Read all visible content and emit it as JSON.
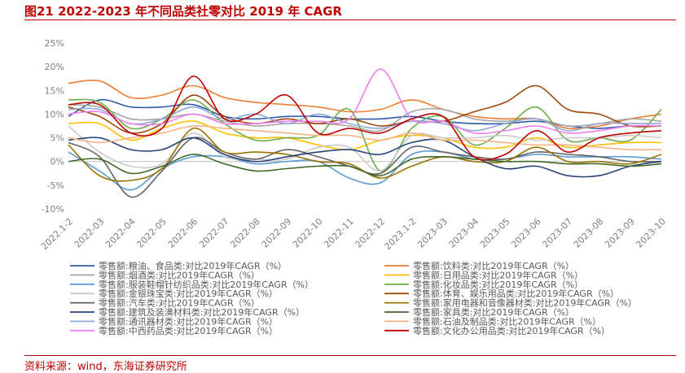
{
  "header": {
    "title": "图21  2022-2023 年不同品类社零对比 2019 年 CAGR"
  },
  "footer": {
    "source": "资料来源：wind，东海证券研究所"
  },
  "chart_data": {
    "type": "line",
    "title": "",
    "xlabel": "",
    "ylabel": "",
    "ylim": [
      -10,
      25
    ],
    "yticks": [
      "25%",
      "20%",
      "15%",
      "10%",
      "5%",
      "0%",
      "-5%",
      "-10%"
    ],
    "grid": false,
    "legend": "bottom",
    "categories": [
      "2022.1-2",
      "2022-03",
      "2022-04",
      "2022-05",
      "2022-06",
      "2022-07",
      "2022-08",
      "2022-09",
      "2022-10",
      "2022-11",
      "2022-12",
      "2023.1-2",
      "2023-03",
      "2023-04",
      "2023-05",
      "2023-06",
      "2023-07",
      "2023-08",
      "2023-09",
      "2023-10"
    ],
    "series": [
      {
        "name": "零售额:粮油、食品类:对比2019年CAGR（%）",
        "color": "#2e5aa8",
        "values": [
          9.5,
          13,
          11.5,
          11.5,
          12,
          9.5,
          9,
          9.5,
          9.5,
          9,
          9,
          9.5,
          8.5,
          8,
          8,
          8.5,
          7.5,
          7,
          7.5,
          7.5
        ]
      },
      {
        "name": "零售额:饮料类:对比2019年CAGR（%）",
        "color": "#ed7d31",
        "values": [
          16.5,
          17,
          13.5,
          14,
          16,
          13.5,
          12.5,
          12,
          11.5,
          10.5,
          11,
          13,
          11,
          9.5,
          9,
          9,
          7,
          7.5,
          9,
          10
        ]
      },
      {
        "name": "零售额:烟酒类:对比2019年CAGR（%）",
        "color": "#a5a5a5",
        "values": [
          12,
          11.5,
          9,
          9,
          10,
          8.5,
          7.5,
          8,
          8,
          7.5,
          6.5,
          10.5,
          11,
          9,
          8.5,
          9,
          7.5,
          8,
          9,
          8.5
        ]
      },
      {
        "name": "零售额:日用品类:对比2019年CAGR（%）",
        "color": "#ffc000",
        "values": [
          8,
          8,
          4.5,
          7,
          8.5,
          6,
          5,
          5,
          3.5,
          2.5,
          4.5,
          5.5,
          5,
          3,
          3,
          5,
          3,
          3.5,
          4,
          4
        ]
      },
      {
        "name": "零售额:服装鞋帽针纺织品类:对比2019年CAGR（%）",
        "color": "#5b9bd5",
        "values": [
          2,
          -2,
          -6,
          -1.5,
          1,
          1,
          -0.5,
          0,
          0,
          -3.5,
          -4.5,
          1.5,
          2,
          0.5,
          0.5,
          1.5,
          1,
          1,
          1,
          0.5
        ]
      },
      {
        "name": "零售额:化妆品类:对比2019年CAGR（%）",
        "color": "#70ad47",
        "values": [
          13,
          12.5,
          7,
          9,
          13,
          8,
          4.5,
          5,
          5.5,
          11,
          -2,
          7,
          9.5,
          3.5,
          7,
          11.5,
          4.5,
          5,
          4.5,
          11
        ]
      },
      {
        "name": "零售额:金银珠宝类:对比2019年CAGR（%）",
        "color": "#c9c9c9",
        "values": [
          7.5,
          2,
          -1,
          -0.5,
          6,
          1,
          0.5,
          0.5,
          3,
          3,
          -2,
          5.5,
          5,
          5,
          5.5,
          4.5,
          5,
          5,
          5.5,
          5
        ]
      },
      {
        "name": "零售额:体育、娱乐用品类:对比2019年CAGR（%）",
        "color": "#9e480e",
        "values": [
          11.5,
          9.5,
          6,
          8,
          14,
          9.5,
          8,
          9,
          8,
          9,
          7.5,
          8.5,
          8.5,
          10.5,
          12.5,
          16,
          11,
          10,
          7.5,
          7.5
        ]
      },
      {
        "name": "零售额:汽车类:对比2019年CAGR（%）",
        "color": "#636363",
        "values": [
          4,
          1,
          -7.5,
          -2,
          5,
          2,
          0.5,
          2.5,
          1,
          -1,
          -2.5,
          3,
          2,
          1,
          0.5,
          2,
          1.5,
          1,
          0,
          0
        ]
      },
      {
        "name": "零售额:家用电器和音像器材类:对比2019年CAGR（%）",
        "color": "#997300",
        "values": [
          3.5,
          -3,
          -4,
          -1.5,
          7,
          2,
          2,
          1.5,
          0,
          -0.5,
          -3.5,
          -1,
          1,
          0,
          0,
          3,
          0,
          0,
          -0.5,
          1.5
        ]
      },
      {
        "name": "零售额:建筑及装潢材料类:对比2019年CAGR（%）",
        "color": "#264478",
        "values": [
          4.5,
          5,
          2.5,
          2.5,
          5,
          1.5,
          0,
          1,
          2,
          2.5,
          1.5,
          4,
          4.5,
          1,
          -1.5,
          -1,
          -3,
          -3,
          -1,
          0
        ]
      },
      {
        "name": "零售额:家具类:对比2019年CAGR（%）",
        "color": "#43682b",
        "values": [
          0,
          0.5,
          -2.5,
          -1,
          1.5,
          -0.5,
          -2,
          -1.5,
          -1,
          -1,
          -3,
          0.5,
          1,
          0.5,
          0,
          0,
          -0.5,
          -0.5,
          -1,
          -0.5
        ]
      },
      {
        "name": "零售额:通讯器材类:对比2019年CAGR（%）",
        "color": "#8fa8d8",
        "values": [
          11,
          11,
          8,
          9,
          11.5,
          9,
          10,
          8,
          10,
          8,
          7,
          8.5,
          8,
          6.5,
          8,
          9,
          6.5,
          8,
          8,
          8
        ]
      },
      {
        "name": "零售额:石油及制品类:对比2019年CAGR（%）",
        "color": "#f4b183",
        "values": [
          5,
          4,
          5,
          6,
          7.5,
          7,
          6.5,
          6,
          5.5,
          5.5,
          4.5,
          6,
          4.5,
          4.5,
          4,
          3.5,
          3.5,
          3,
          2.5,
          2.5
        ]
      },
      {
        "name": "零售额:中西药品类:对比2019年CAGR（%）",
        "color": "#f07ef0",
        "values": [
          10,
          10.5,
          8,
          8,
          10,
          8,
          8,
          8.5,
          8.5,
          9,
          19.5,
          9,
          8.5,
          6,
          6.5,
          7.5,
          6,
          6.5,
          7.5,
          7.5
        ]
      },
      {
        "name": "零售额:文化办公用品类:对比2019年CAGR（%）",
        "color": "#c00000",
        "values": [
          12,
          12,
          6,
          7,
          18,
          9,
          10,
          14,
          6,
          7,
          6,
          9,
          9.5,
          1,
          1.5,
          6.5,
          2,
          5,
          6,
          6.5
        ]
      }
    ]
  }
}
